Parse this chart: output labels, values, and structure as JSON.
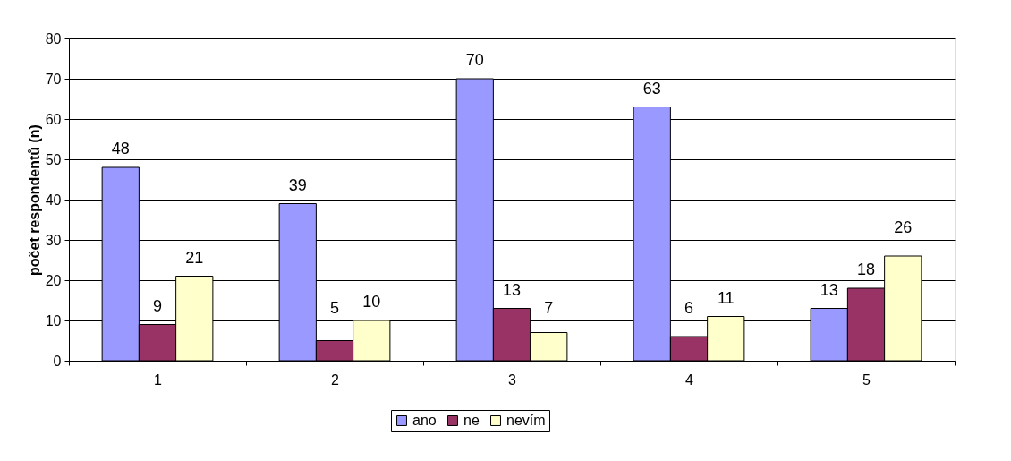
{
  "chart_data": {
    "type": "bar",
    "ylabel": "počet respondentů (n)",
    "categories": [
      "1",
      "2",
      "3",
      "4",
      "5"
    ],
    "series": [
      {
        "name": "ano",
        "color": "#9999ff",
        "values": [
          48,
          39,
          70,
          63,
          13
        ]
      },
      {
        "name": "ne",
        "color": "#993366",
        "values": [
          9,
          5,
          13,
          6,
          18
        ]
      },
      {
        "name": "nevím",
        "color": "#ffffcc",
        "values": [
          21,
          10,
          7,
          11,
          26
        ]
      }
    ],
    "ylim": [
      0,
      80
    ],
    "yticks": [
      0,
      10,
      20,
      30,
      40,
      50,
      60,
      70,
      80
    ],
    "grid": "y",
    "legend": "bottom",
    "data_labels": true
  }
}
